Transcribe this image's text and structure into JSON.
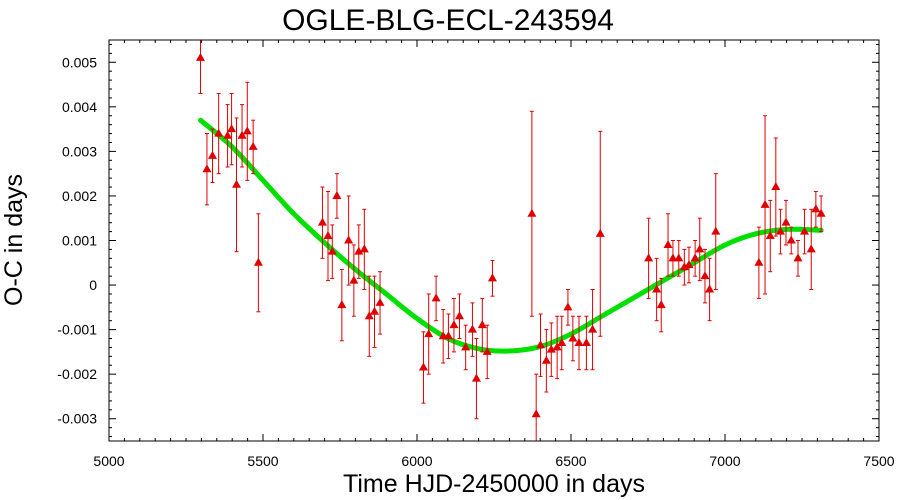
{
  "chart_data": {
    "type": "scatter",
    "title": "OGLE-BLG-ECL-243594",
    "xlabel": "Time HJD-2450000 in days",
    "ylabel": "O-C in days",
    "xlim": [
      5000,
      7500
    ],
    "ylim": [
      -0.0035,
      0.0055
    ],
    "xticks": [
      5000,
      5500,
      6000,
      6500,
      7000,
      7500
    ],
    "xtick_labels": [
      "5000",
      "5500",
      "6000",
      "6500",
      "7000",
      "7500"
    ],
    "yticks": [
      -0.003,
      -0.002,
      -0.001,
      0,
      0.001,
      0.002,
      0.003,
      0.004,
      0.005
    ],
    "ytick_labels": [
      "-0.003",
      "-0.002",
      "-0.001",
      "0",
      "0.001",
      "0.002",
      "0.003",
      "0.004",
      "0.005"
    ],
    "grid": false,
    "colors": {
      "points": "#e00000",
      "fit": "#00e000",
      "frame": "#000000"
    },
    "series": [
      {
        "kind": "points-with-errorbars",
        "marker": "triangle",
        "points": [
          {
            "x": 5297,
            "y": 0.0051,
            "err": 0.0008
          },
          {
            "x": 5318,
            "y": 0.0026,
            "err": 0.0008
          },
          {
            "x": 5336,
            "y": 0.0029,
            "err": 0.0006
          },
          {
            "x": 5356,
            "y": 0.0034,
            "err": 0.0009
          },
          {
            "x": 5385,
            "y": 0.00335,
            "err": 0.0007
          },
          {
            "x": 5398,
            "y": 0.0035,
            "err": 0.0008
          },
          {
            "x": 5414,
            "y": 0.00225,
            "err": 0.0015
          },
          {
            "x": 5432,
            "y": 0.00335,
            "err": 0.0007
          },
          {
            "x": 5449,
            "y": 0.00345,
            "err": 0.0011
          },
          {
            "x": 5468,
            "y": 0.0031,
            "err": 0.0006
          },
          {
            "x": 5485,
            "y": 0.0005,
            "err": 0.0011
          },
          {
            "x": 5693,
            "y": 0.0014,
            "err": 0.0008
          },
          {
            "x": 5711,
            "y": 0.0011,
            "err": 0.001
          },
          {
            "x": 5725,
            "y": 0.00075,
            "err": 0.0006
          },
          {
            "x": 5740,
            "y": 0.002,
            "err": 0.0005
          },
          {
            "x": 5756,
            "y": -0.00045,
            "err": 0.0008
          },
          {
            "x": 5778,
            "y": 0.001,
            "err": 0.001
          },
          {
            "x": 5795,
            "y": 0.0001,
            "err": 0.0008
          },
          {
            "x": 5811,
            "y": 0.00075,
            "err": 0.0006
          },
          {
            "x": 5829,
            "y": 0.0008,
            "err": 0.0009
          },
          {
            "x": 5845,
            "y": -0.0007,
            "err": 0.0009
          },
          {
            "x": 5862,
            "y": -0.0006,
            "err": 0.0008
          },
          {
            "x": 5880,
            "y": -0.0004,
            "err": 0.0007
          },
          {
            "x": 6021,
            "y": -0.00185,
            "err": 0.0008
          },
          {
            "x": 6038,
            "y": -0.0011,
            "err": 0.0009
          },
          {
            "x": 6062,
            "y": -0.0003,
            "err": 0.0005
          },
          {
            "x": 6085,
            "y": -0.00115,
            "err": 0.0006
          },
          {
            "x": 6102,
            "y": -0.00115,
            "err": 0.0005
          },
          {
            "x": 6120,
            "y": -0.0009,
            "err": 0.0006
          },
          {
            "x": 6138,
            "y": -0.0007,
            "err": 0.0005
          },
          {
            "x": 6158,
            "y": -0.0014,
            "err": 0.0005
          },
          {
            "x": 6180,
            "y": -0.001,
            "err": 0.0006
          },
          {
            "x": 6193,
            "y": -0.0021,
            "err": 0.0009
          },
          {
            "x": 6212,
            "y": -0.0009,
            "err": 0.0006
          },
          {
            "x": 6228,
            "y": -0.0015,
            "err": 0.0006
          },
          {
            "x": 6245,
            "y": 0.00015,
            "err": 0.0004
          },
          {
            "x": 6373,
            "y": 0.0016,
            "err": 0.0023
          },
          {
            "x": 6387,
            "y": -0.0029,
            "err": 0.0009
          },
          {
            "x": 6401,
            "y": -0.00135,
            "err": 0.0007
          },
          {
            "x": 6420,
            "y": -0.0017,
            "err": 0.0007
          },
          {
            "x": 6436,
            "y": -0.00145,
            "err": 0.0006
          },
          {
            "x": 6455,
            "y": -0.0014,
            "err": 0.0007
          },
          {
            "x": 6470,
            "y": -0.0013,
            "err": 0.0006
          },
          {
            "x": 6490,
            "y": -0.0005,
            "err": 0.0004
          },
          {
            "x": 6506,
            "y": -0.0012,
            "err": 0.0005
          },
          {
            "x": 6526,
            "y": -0.0013,
            "err": 0.0006
          },
          {
            "x": 6550,
            "y": -0.0013,
            "err": 0.0006
          },
          {
            "x": 6570,
            "y": -0.001,
            "err": 0.0009
          },
          {
            "x": 6595,
            "y": 0.00115,
            "err": 0.0023
          },
          {
            "x": 6752,
            "y": 0.0006,
            "err": 0.0009
          },
          {
            "x": 6778,
            "y": -0.0001,
            "err": 0.0007
          },
          {
            "x": 6793,
            "y": -0.00045,
            "err": 0.0006
          },
          {
            "x": 6815,
            "y": 0.0009,
            "err": 0.0007
          },
          {
            "x": 6831,
            "y": 0.0006,
            "err": 0.0004
          },
          {
            "x": 6850,
            "y": 0.0006,
            "err": 0.0004
          },
          {
            "x": 6868,
            "y": 0.0004,
            "err": 0.0004
          },
          {
            "x": 6883,
            "y": 0.00045,
            "err": 0.0004
          },
          {
            "x": 6903,
            "y": 0.0006,
            "err": 0.0004
          },
          {
            "x": 6918,
            "y": 0.0008,
            "err": 0.0007
          },
          {
            "x": 6935,
            "y": 0.0002,
            "err": 0.0006
          },
          {
            "x": 6950,
            "y": -0.0001,
            "err": 0.0007
          },
          {
            "x": 6970,
            "y": 0.0012,
            "err": 0.0013
          },
          {
            "x": 7110,
            "y": 0.0005,
            "err": 0.0008
          },
          {
            "x": 7130,
            "y": 0.0018,
            "err": 0.002
          },
          {
            "x": 7147,
            "y": 0.0011,
            "err": 0.0008
          },
          {
            "x": 7165,
            "y": 0.0022,
            "err": 0.0011
          },
          {
            "x": 7180,
            "y": 0.0012,
            "err": 0.0005
          },
          {
            "x": 7198,
            "y": 0.0014,
            "err": 0.0005
          },
          {
            "x": 7215,
            "y": 0.001,
            "err": 0.0003
          },
          {
            "x": 7237,
            "y": 0.0006,
            "err": 0.0004
          },
          {
            "x": 7258,
            "y": 0.0012,
            "err": 0.0005
          },
          {
            "x": 7280,
            "y": 0.0008,
            "err": 0.0009
          },
          {
            "x": 7295,
            "y": 0.0017,
            "err": 0.0004
          },
          {
            "x": 7312,
            "y": 0.0016,
            "err": 0.0004
          }
        ]
      },
      {
        "kind": "fit-curve",
        "x": [
          5297,
          5400,
          5500,
          5600,
          5700,
          5800,
          5900,
          6000,
          6100,
          6200,
          6300,
          6400,
          6500,
          6600,
          6700,
          6800,
          6900,
          7000,
          7100,
          7200,
          7312
        ],
        "y": [
          0.0037,
          0.0031,
          0.00235,
          0.0016,
          0.00095,
          0.00035,
          -0.0002,
          -0.00075,
          -0.0012,
          -0.00143,
          -0.00148,
          -0.00138,
          -0.0011,
          -0.0007,
          -0.0003,
          0.0001,
          0.0005,
          0.0009,
          0.00115,
          0.00125,
          0.00123
        ]
      }
    ]
  }
}
